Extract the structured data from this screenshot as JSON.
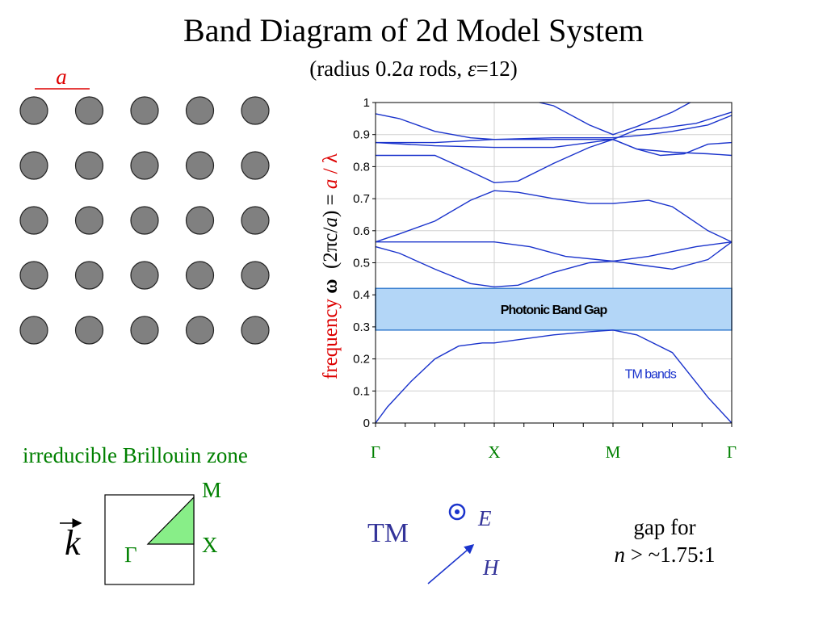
{
  "title": "Band Diagram of 2d Model System",
  "subtitle": {
    "p1": "(radius 0.2",
    "a": "a",
    "p2": " rods, ",
    "eps": "ε",
    "p3": "=12)"
  },
  "lattice_label": "a",
  "ylabel": {
    "freq": "frequency",
    "omega": "ω",
    "unit_open": "(2πc/",
    "unit_a": "a",
    "unit_close": ")",
    "eq": "=",
    "a": "a",
    "lambda": "/ λ"
  },
  "brillouin": {
    "label": "irreducible Brillouin zone",
    "k": "k",
    "M": "M",
    "X": "X",
    "Gamma": "Γ"
  },
  "polarization": {
    "mode": "TM",
    "E": "E",
    "H": "H"
  },
  "gap_note": {
    "line1": "gap for",
    "n": "n",
    "line2": " > ~1.75:1"
  },
  "chart_data": {
    "type": "line",
    "ylim": [
      0,
      1
    ],
    "yticks": [
      "0",
      "0.1",
      "0.2",
      "0.3",
      "0.4",
      "0.5",
      "0.6",
      "0.7",
      "0.8",
      "0.9",
      "1"
    ],
    "x_ticks": [
      "Γ",
      "X",
      "M",
      "Γ"
    ],
    "x_tick_positions": [
      0,
      1,
      2,
      3
    ],
    "xlim": [
      0,
      3
    ],
    "grid": true,
    "gap": {
      "label": "Photonic Band Gap",
      "y0": 0.29,
      "y1": 0.42,
      "color": "#b3d6f7"
    },
    "band_label": "TM bands",
    "line_color": "#1a33cc",
    "series": [
      {
        "values": [
          [
            0,
            0
          ],
          [
            0.1,
            0.05
          ],
          [
            0.3,
            0.13
          ],
          [
            0.5,
            0.2
          ],
          [
            0.7,
            0.24
          ],
          [
            0.9,
            0.25
          ],
          [
            1,
            0.25
          ],
          [
            1.2,
            0.26
          ],
          [
            1.5,
            0.275
          ],
          [
            1.8,
            0.285
          ],
          [
            2,
            0.29
          ],
          [
            2.2,
            0.275
          ],
          [
            2.5,
            0.22
          ],
          [
            2.8,
            0.08
          ],
          [
            3,
            0
          ]
        ]
      },
      {
        "values": [
          [
            0,
            0.55
          ],
          [
            0.2,
            0.53
          ],
          [
            0.5,
            0.48
          ],
          [
            0.8,
            0.435
          ],
          [
            1,
            0.425
          ],
          [
            1.2,
            0.43
          ],
          [
            1.5,
            0.47
          ],
          [
            1.8,
            0.5
          ],
          [
            2,
            0.505
          ],
          [
            2.3,
            0.49
          ],
          [
            2.5,
            0.48
          ],
          [
            2.8,
            0.51
          ],
          [
            3,
            0.565
          ]
        ]
      },
      {
        "values": [
          [
            0,
            0.565
          ],
          [
            0.5,
            0.565
          ],
          [
            1,
            0.565
          ],
          [
            1.3,
            0.55
          ],
          [
            1.6,
            0.52
          ],
          [
            2,
            0.505
          ],
          [
            2.3,
            0.52
          ],
          [
            2.7,
            0.55
          ],
          [
            3,
            0.565
          ]
        ]
      },
      {
        "values": [
          [
            0,
            0.565
          ],
          [
            0.2,
            0.59
          ],
          [
            0.5,
            0.63
          ],
          [
            0.8,
            0.695
          ],
          [
            1,
            0.725
          ],
          [
            1.2,
            0.72
          ],
          [
            1.5,
            0.7
          ],
          [
            1.8,
            0.685
          ],
          [
            2,
            0.685
          ],
          [
            2.3,
            0.695
          ],
          [
            2.5,
            0.675
          ],
          [
            2.8,
            0.6
          ],
          [
            3,
            0.565
          ]
        ]
      },
      {
        "values": [
          [
            0,
            0.835
          ],
          [
            0.5,
            0.835
          ],
          [
            0.8,
            0.785
          ],
          [
            1,
            0.75
          ],
          [
            1.2,
            0.755
          ],
          [
            1.5,
            0.81
          ],
          [
            1.8,
            0.86
          ],
          [
            2,
            0.885
          ],
          [
            2.2,
            0.855
          ],
          [
            2.5,
            0.845
          ],
          [
            2.8,
            0.84
          ],
          [
            3,
            0.835
          ]
        ]
      },
      {
        "values": [
          [
            0,
            0.875
          ],
          [
            0.5,
            0.865
          ],
          [
            1,
            0.86
          ],
          [
            1.5,
            0.86
          ],
          [
            2,
            0.885
          ],
          [
            2.2,
            0.855
          ],
          [
            2.4,
            0.835
          ],
          [
            2.6,
            0.84
          ],
          [
            2.8,
            0.87
          ],
          [
            3,
            0.875
          ]
        ]
      },
      {
        "values": [
          [
            0,
            0.875
          ],
          [
            0.5,
            0.875
          ],
          [
            1,
            0.885
          ],
          [
            1.5,
            0.89
          ],
          [
            2,
            0.89
          ],
          [
            2.3,
            0.9
          ],
          [
            2.5,
            0.91
          ],
          [
            2.8,
            0.93
          ],
          [
            3,
            0.96
          ]
        ]
      },
      {
        "values": [
          [
            0,
            0.965
          ],
          [
            0.2,
            0.95
          ],
          [
            0.5,
            0.91
          ],
          [
            0.8,
            0.89
          ],
          [
            1,
            0.885
          ],
          [
            1.5,
            0.885
          ],
          [
            2,
            0.885
          ],
          [
            2.2,
            0.915
          ],
          [
            2.4,
            0.92
          ],
          [
            2.7,
            0.935
          ],
          [
            3,
            0.97
          ]
        ]
      },
      {
        "values": [
          [
            1.38,
            1.0
          ],
          [
            1.5,
            0.99
          ],
          [
            1.8,
            0.93
          ],
          [
            2,
            0.9
          ],
          [
            2.2,
            0.925
          ],
          [
            2.5,
            0.97
          ],
          [
            2.65,
            1.0
          ]
        ]
      }
    ]
  }
}
